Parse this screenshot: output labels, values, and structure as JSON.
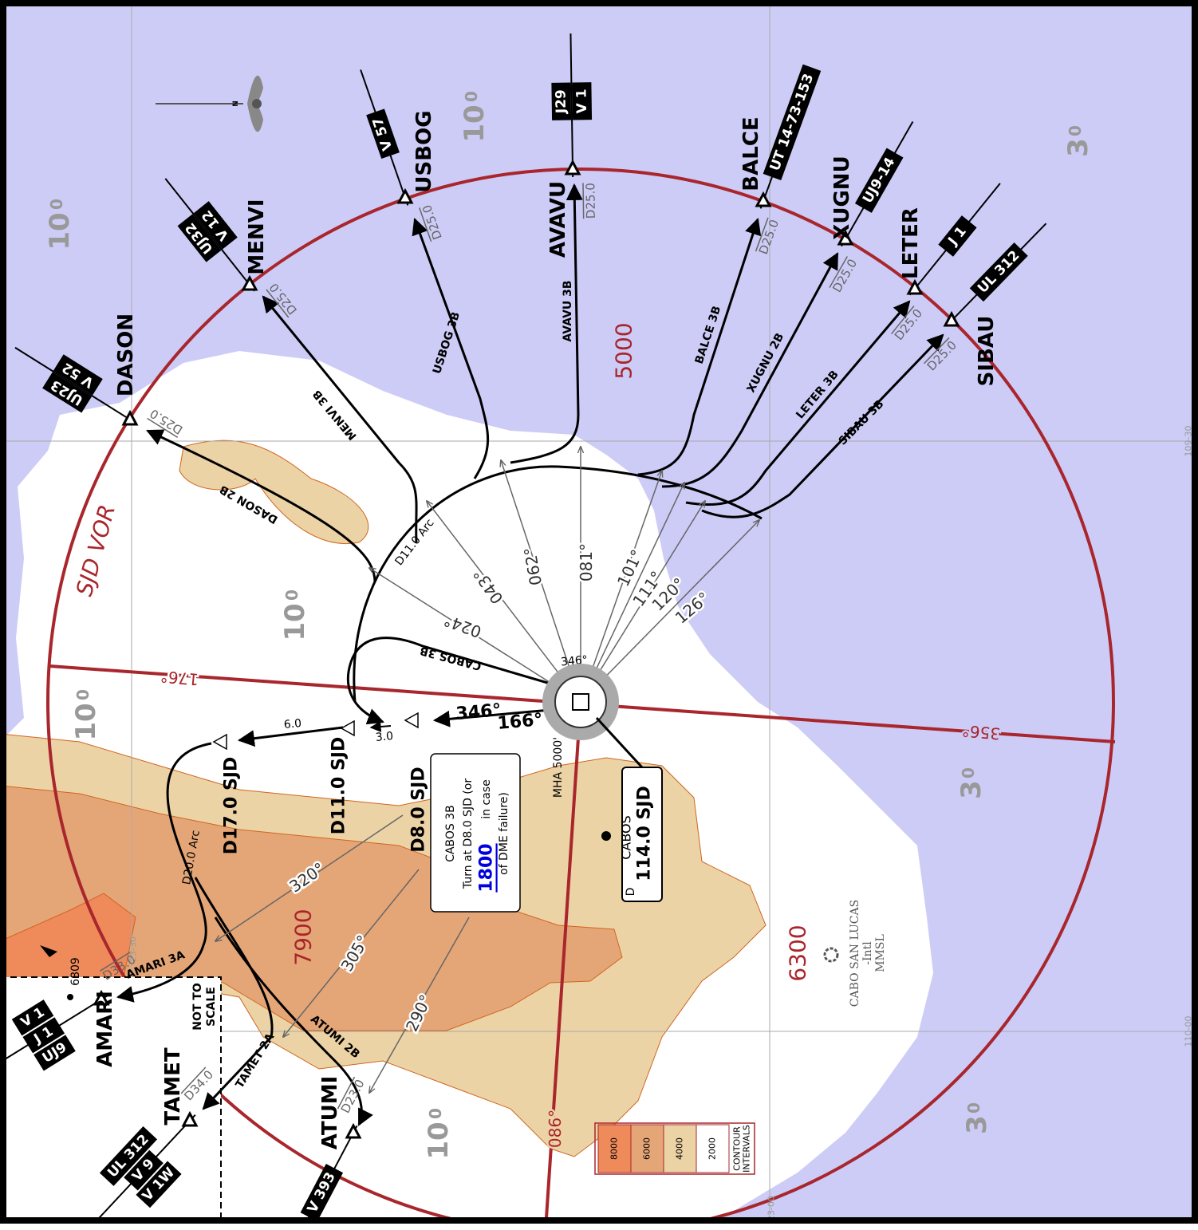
{
  "waypoints": [
    {
      "name": "DASON",
      "airways": [
        "UJ23",
        "V 52"
      ],
      "distance": "D25.0"
    },
    {
      "name": "MENVI",
      "airways": [
        "UJ32",
        "V 12"
      ],
      "distance": "D25.0"
    },
    {
      "name": "USBOG",
      "airways": [
        "V 57"
      ],
      "distance": "D25.0"
    },
    {
      "name": "AVAVU",
      "airways": [
        "J29",
        "V 1"
      ],
      "distance": "D25.0"
    },
    {
      "name": "BALCE",
      "airways": [
        "UT 14-73-153"
      ],
      "distance": "D25.0"
    },
    {
      "name": "XUGNU",
      "airways": [
        "UJ9-14"
      ],
      "distance": "D25.0"
    },
    {
      "name": "LETER",
      "airways": [
        "J 1"
      ],
      "distance": "D25.0"
    },
    {
      "name": "SIBAU",
      "airways": [
        "UL 312"
      ],
      "distance": "D25.0"
    },
    {
      "name": "AMARI",
      "airways": [
        "UJ9",
        "J 1",
        "V 1"
      ],
      "distance": "D33.0"
    },
    {
      "name": "TAMET",
      "airways": [
        "V 1W",
        "V 9",
        "UL 312"
      ],
      "distance": "D34.0"
    },
    {
      "name": "ATUMI",
      "airways": [
        "V 393"
      ],
      "distance": "D23.0"
    }
  ],
  "procedures": [
    "DASON 2B",
    "MENVI 3B",
    "USBOG 3B",
    "AVAVU 3B",
    "BALCE 3B",
    "XUGNU 2B",
    "LETER 3B",
    "SIBAU 3B",
    "CABOS 3B",
    "AMARI 3A",
    "TAMET 2A",
    "ATUMI 2B"
  ],
  "radials": [
    "024°",
    "043°",
    "062°",
    "081°",
    "101°",
    "111°",
    "120°",
    "126°",
    "320°",
    "305°",
    "290°"
  ],
  "inbound": {
    "course": "346°",
    "outbound": "166°",
    "top": "346°"
  },
  "vor_radials": {
    "r176": "176°",
    "r356": "356°",
    "r086": "086°",
    "name": "SJD VOR"
  },
  "fixes": {
    "d8": "D8.0 SJD",
    "d11": "D11.0 SJD",
    "d17": "D17.0 SJD",
    "leg1": "6.0",
    "leg2": "3.0",
    "arc11": "D11.0 Arc",
    "arc20": "D20.0 Arc"
  },
  "note": {
    "title": "CABOS 3B",
    "line1": "Turn at D8.0 SJD (or",
    "altitude": "1800",
    "line2": "in case",
    "line3": "of DME failure)"
  },
  "navaid": {
    "name": "CABOS",
    "frequency": "114.0 SJD",
    "dme": "D",
    "mha": "MHA 5000'"
  },
  "altitudes": [
    "5000",
    "7900",
    "6300"
  ],
  "grid_mora": [
    {
      "big": "10",
      "small": "0"
    },
    {
      "big": "10",
      "small": "0"
    },
    {
      "big": "10",
      "small": "0"
    },
    {
      "big": "10",
      "small": "0"
    },
    {
      "big": "10",
      "small": "0"
    },
    {
      "big": "3",
      "small": "0"
    },
    {
      "big": "3",
      "small": "0"
    },
    {
      "big": "3",
      "small": "0"
    }
  ],
  "airport": {
    "name": "CABO SAN LUCAS",
    "suffix": "-Intl",
    "icao": "MMSL"
  },
  "spot_elevation": "6809",
  "inset": [
    "NOT TO",
    "SCALE"
  ],
  "legend": {
    "title": [
      "CONTOUR",
      "INTERVALS"
    ],
    "levels": [
      "8000",
      "6000",
      "4000",
      "2000"
    ]
  },
  "coordinates": [
    "23-30",
    "23-00",
    "109-30",
    "110-00"
  ],
  "north": "N"
}
